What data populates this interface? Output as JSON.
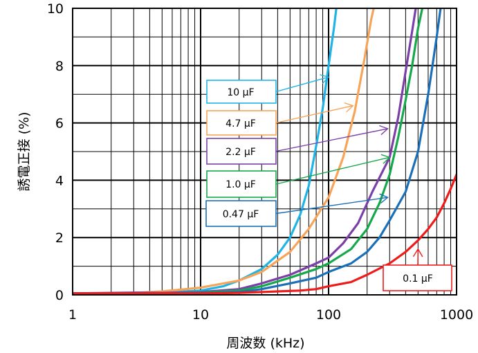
{
  "chart_data": {
    "type": "line",
    "xlabel": "周波数 (kHz)",
    "ylabel": "誘電正接 (%)",
    "x_scale": "log",
    "xlim": [
      1,
      1000
    ],
    "ylim": [
      0,
      10
    ],
    "x_ticks": [
      "1",
      "10",
      "100",
      "1000"
    ],
    "y_ticks": [
      "0",
      "2",
      "4",
      "6",
      "8",
      "10"
    ],
    "grid": true,
    "series": [
      {
        "name": "10 μF",
        "color": "#1fb4e6",
        "points": [
          [
            1,
            0.05
          ],
          [
            3,
            0.05
          ],
          [
            5,
            0.08
          ],
          [
            10,
            0.15
          ],
          [
            15,
            0.3
          ],
          [
            20,
            0.5
          ],
          [
            30,
            0.9
          ],
          [
            40,
            1.4
          ],
          [
            50,
            2.0
          ],
          [
            60,
            2.8
          ],
          [
            70,
            3.8
          ],
          [
            80,
            5.2
          ],
          [
            90,
            6.5
          ],
          [
            100,
            8.0
          ],
          [
            110,
            9.3
          ],
          [
            115,
            10
          ]
        ]
      },
      {
        "name": "4.7 μF",
        "color": "#f7a458",
        "points": [
          [
            1,
            0.05
          ],
          [
            3,
            0.07
          ],
          [
            5,
            0.12
          ],
          [
            10,
            0.25
          ],
          [
            20,
            0.5
          ],
          [
            30,
            0.8
          ],
          [
            50,
            1.5
          ],
          [
            70,
            2.3
          ],
          [
            100,
            3.4
          ],
          [
            130,
            4.8
          ],
          [
            160,
            6.4
          ],
          [
            190,
            8.2
          ],
          [
            215,
            9.6
          ],
          [
            225,
            10
          ]
        ]
      },
      {
        "name": "2.2 μF",
        "color": "#7b3fa8",
        "points": [
          [
            1,
            0.05
          ],
          [
            3,
            0.08
          ],
          [
            5,
            0.07
          ],
          [
            10,
            0.1
          ],
          [
            20,
            0.2
          ],
          [
            30,
            0.4
          ],
          [
            50,
            0.7
          ],
          [
            80,
            1.1
          ],
          [
            100,
            1.3
          ],
          [
            130,
            1.8
          ],
          [
            170,
            2.5
          ],
          [
            220,
            3.6
          ],
          [
            300,
            4.8
          ],
          [
            350,
            6.2
          ],
          [
            400,
            7.8
          ],
          [
            450,
            9.2
          ],
          [
            480,
            10
          ]
        ]
      },
      {
        "name": "1.0 μF",
        "color": "#16a84a",
        "points": [
          [
            1,
            0.05
          ],
          [
            5,
            0.05
          ],
          [
            10,
            0.08
          ],
          [
            20,
            0.15
          ],
          [
            30,
            0.3
          ],
          [
            50,
            0.6
          ],
          [
            80,
            0.9
          ],
          [
            100,
            1.1
          ],
          [
            150,
            1.6
          ],
          [
            200,
            2.3
          ],
          [
            250,
            3.2
          ],
          [
            300,
            4.2
          ],
          [
            350,
            5.5
          ],
          [
            400,
            6.8
          ],
          [
            450,
            8.0
          ],
          [
            500,
            9.3
          ],
          [
            540,
            10
          ]
        ]
      },
      {
        "name": "0.47 μF",
        "color": "#1a6fb9",
        "points": [
          [
            1,
            0.05
          ],
          [
            5,
            0.05
          ],
          [
            10,
            0.06
          ],
          [
            20,
            0.1
          ],
          [
            30,
            0.2
          ],
          [
            50,
            0.4
          ],
          [
            80,
            0.6
          ],
          [
            100,
            0.8
          ],
          [
            150,
            1.1
          ],
          [
            200,
            1.5
          ],
          [
            250,
            2.0
          ],
          [
            300,
            2.6
          ],
          [
            400,
            3.6
          ],
          [
            500,
            5.0
          ],
          [
            600,
            7.0
          ],
          [
            700,
            9.0
          ],
          [
            750,
            10
          ]
        ]
      },
      {
        "name": "0.1 μF",
        "color": "#ef1a1a",
        "points": [
          [
            1,
            0.05
          ],
          [
            5,
            0.05
          ],
          [
            10,
            0.05
          ],
          [
            20,
            0.07
          ],
          [
            30,
            0.1
          ],
          [
            40,
            0.12
          ],
          [
            60,
            0.15
          ],
          [
            80,
            0.2
          ],
          [
            100,
            0.3
          ],
          [
            150,
            0.45
          ],
          [
            200,
            0.7
          ],
          [
            300,
            1.1
          ],
          [
            400,
            1.5
          ],
          [
            500,
            1.9
          ],
          [
            600,
            2.3
          ],
          [
            700,
            2.7
          ],
          [
            800,
            3.2
          ],
          [
            900,
            3.7
          ],
          [
            1000,
            4.2
          ]
        ]
      }
    ]
  }
}
